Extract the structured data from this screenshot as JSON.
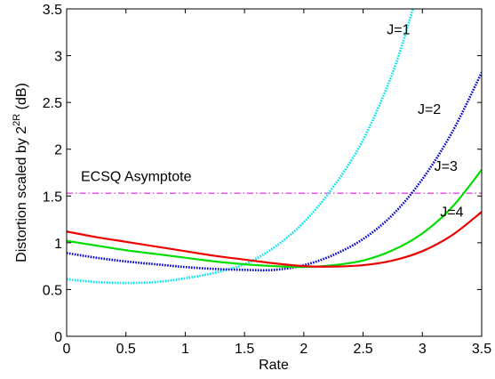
{
  "chart_data": {
    "type": "line",
    "title": "",
    "xlabel": "Rate",
    "ylabel": "Distortion scaled by 2^2R (dB)",
    "ylabel_parts": {
      "main": "Distortion scaled by 2",
      "sup": "2R",
      "unit": " (dB)"
    },
    "xlim": [
      0,
      3.5
    ],
    "ylim": [
      0,
      3.5
    ],
    "xticks": [
      "0",
      "0.5",
      "1",
      "1.5",
      "2",
      "2.5",
      "3",
      "3.5"
    ],
    "yticks": [
      "0",
      "0.5",
      "1",
      "1.5",
      "2",
      "2.5",
      "3",
      "3.5"
    ],
    "grid": false,
    "series": [
      {
        "name": "J=1",
        "color": "#00e5ee",
        "x": [
          0,
          0.25,
          0.5,
          0.75,
          1.0,
          1.25,
          1.5,
          1.75,
          2.0,
          2.25,
          2.5,
          2.75,
          2.92
        ],
        "y": [
          0.61,
          0.58,
          0.57,
          0.58,
          0.62,
          0.68,
          0.77,
          0.95,
          1.22,
          1.6,
          2.1,
          2.82,
          3.5
        ]
      },
      {
        "name": "J=2",
        "color": "#0000cc",
        "x": [
          0,
          0.25,
          0.5,
          0.75,
          1.0,
          1.25,
          1.5,
          1.75,
          2.0,
          2.25,
          2.5,
          2.75,
          3.0,
          3.25,
          3.5
        ],
        "y": [
          0.89,
          0.84,
          0.8,
          0.77,
          0.74,
          0.72,
          0.71,
          0.71,
          0.76,
          0.87,
          1.04,
          1.3,
          1.68,
          2.18,
          2.82
        ]
      },
      {
        "name": "J=3",
        "color": "#00dd00",
        "x": [
          0,
          0.25,
          0.5,
          0.75,
          1.0,
          1.25,
          1.5,
          1.75,
          2.0,
          2.25,
          2.5,
          2.75,
          3.0,
          3.25,
          3.5
        ],
        "y": [
          1.02,
          0.97,
          0.92,
          0.88,
          0.84,
          0.8,
          0.77,
          0.75,
          0.74,
          0.76,
          0.81,
          0.92,
          1.1,
          1.38,
          1.78
        ]
      },
      {
        "name": "J=4",
        "color": "#ee0000",
        "x": [
          0,
          0.25,
          0.5,
          0.75,
          1.0,
          1.25,
          1.5,
          1.75,
          2.0,
          2.25,
          2.5,
          2.75,
          3.0,
          3.25,
          3.5
        ],
        "y": [
          1.12,
          1.06,
          1.01,
          0.96,
          0.91,
          0.86,
          0.82,
          0.78,
          0.75,
          0.745,
          0.76,
          0.81,
          0.91,
          1.08,
          1.33
        ]
      }
    ],
    "reference_line": {
      "label": "ECSQ Asymptote",
      "y": 1.53,
      "color": "#dd00dd"
    },
    "annotations": [
      {
        "text": "J=1",
        "x": 2.7,
        "y": 3.23
      },
      {
        "text": "J=2",
        "x": 2.96,
        "y": 2.38
      },
      {
        "text": "J=3",
        "x": 3.1,
        "y": 1.77
      },
      {
        "text": "J=4",
        "x": 3.15,
        "y": 1.28
      },
      {
        "text": "ECSQ Asymptote",
        "x": 0.12,
        "y": 1.66
      }
    ]
  }
}
